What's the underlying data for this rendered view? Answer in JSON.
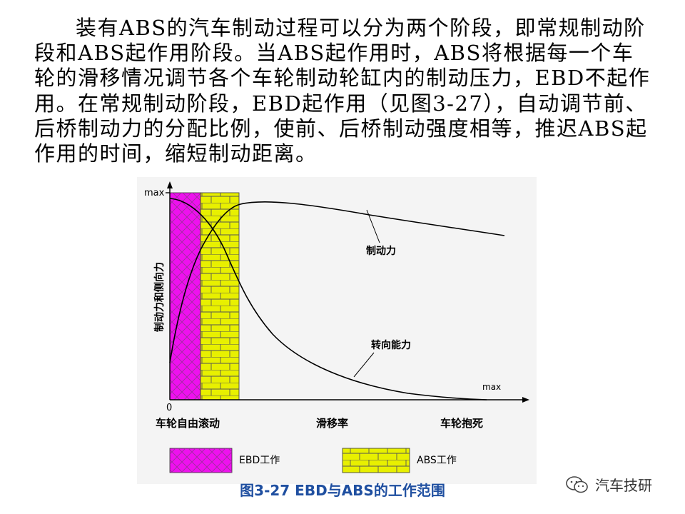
{
  "paragraph": "装有ABS的汽车制动过程可以分为两个阶段，即常规制动阶段和ABS起作用阶段。当ABS起作用时，ABS将根据每一个车轮的滑移情况调节各个车轮制动轮缸内的制动压力，EBD不起作用。在常规制动阶段，EBD起作用（见图3-27），自动调节前、后桥制动力的分配比例，使前、后桥制动强度相等，推迟ABS起作用的时间，缩短制动距离。",
  "figure": {
    "y_axis_label": "制动力和侧向力",
    "y_max_label": "max",
    "origin_label": "0",
    "x_max_label": "max",
    "x_labels": {
      "left": "车轮自由滚动",
      "center": "滑移率",
      "right": "车轮抱死"
    },
    "curve_labels": {
      "braking_force": "制动力",
      "lateral_force": "转向能力"
    },
    "legend": {
      "ebd": "EBD工作",
      "abs": "ABS工作"
    },
    "colors": {
      "ebd": "#ee11ee",
      "abs": "#e8f000",
      "pattern_line": "#555555"
    }
  },
  "caption": "图3-27  EBD与ABS的工作范围",
  "watermark": {
    "icon": "wechat-icon",
    "text": "汽车技研"
  }
}
